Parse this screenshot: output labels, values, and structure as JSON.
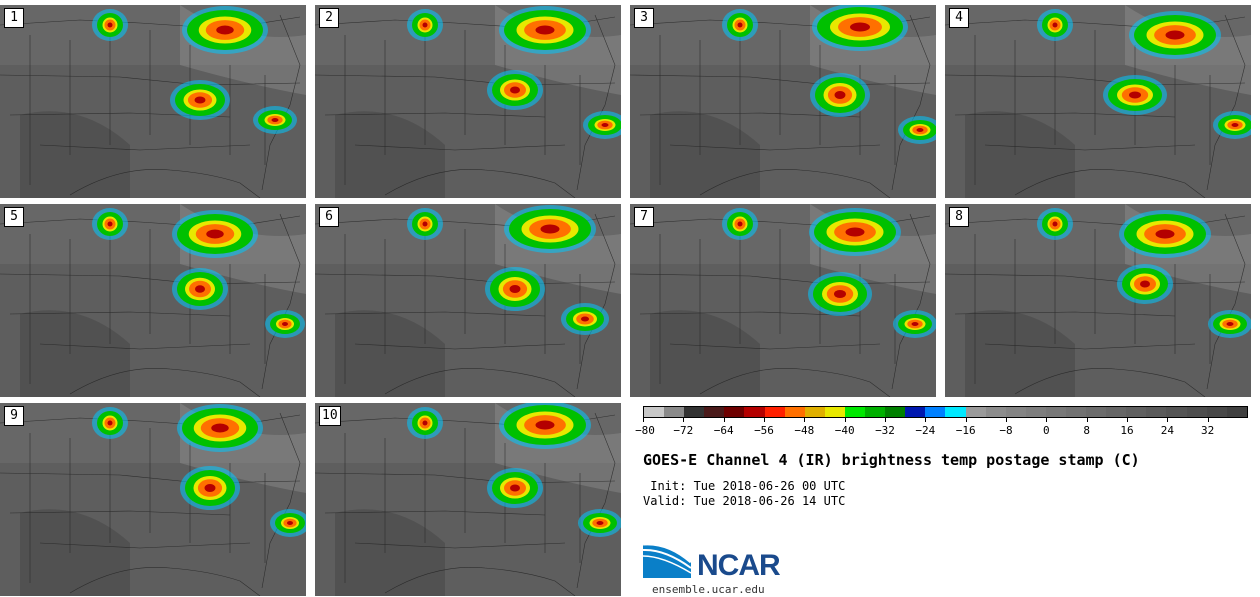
{
  "panels": [
    {
      "label": "1"
    },
    {
      "label": "2"
    },
    {
      "label": "3"
    },
    {
      "label": "4"
    },
    {
      "label": "5"
    },
    {
      "label": "6"
    },
    {
      "label": "7"
    },
    {
      "label": "8"
    },
    {
      "label": "9"
    },
    {
      "label": "10"
    }
  ],
  "colorbar": {
    "colors": [
      "#c8c8c8",
      "#8a8a8a",
      "#333333",
      "#4a1a1a",
      "#6e0000",
      "#b40000",
      "#ff2000",
      "#ff7000",
      "#e0b000",
      "#e8e800",
      "#00e800",
      "#00b000",
      "#008000",
      "#0018b0",
      "#0080ff",
      "#00e8ff",
      "#9a9a9a",
      "#8c8c8c",
      "#848484",
      "#7e7e7e",
      "#787878",
      "#727272",
      "#6c6c6c",
      "#666666",
      "#606060",
      "#5a5a5a",
      "#545454",
      "#4e4e4e",
      "#484848",
      "#404040"
    ],
    "tick_labels": [
      "−80",
      "−72",
      "−64",
      "−56",
      "−48",
      "−40",
      "−32",
      "−24",
      "−16",
      "−8",
      "0",
      "8",
      "16",
      "24",
      "32"
    ]
  },
  "title": "GOES-E Channel 4 (IR) brightness temp postage stamp (C)",
  "init_line": " Init: Tue 2018-06-26 00 UTC",
  "valid_line": "Valid: Tue 2018-06-26 14 UTC",
  "logo_text": "NCAR",
  "url": "ensemble.ucar.edu"
}
